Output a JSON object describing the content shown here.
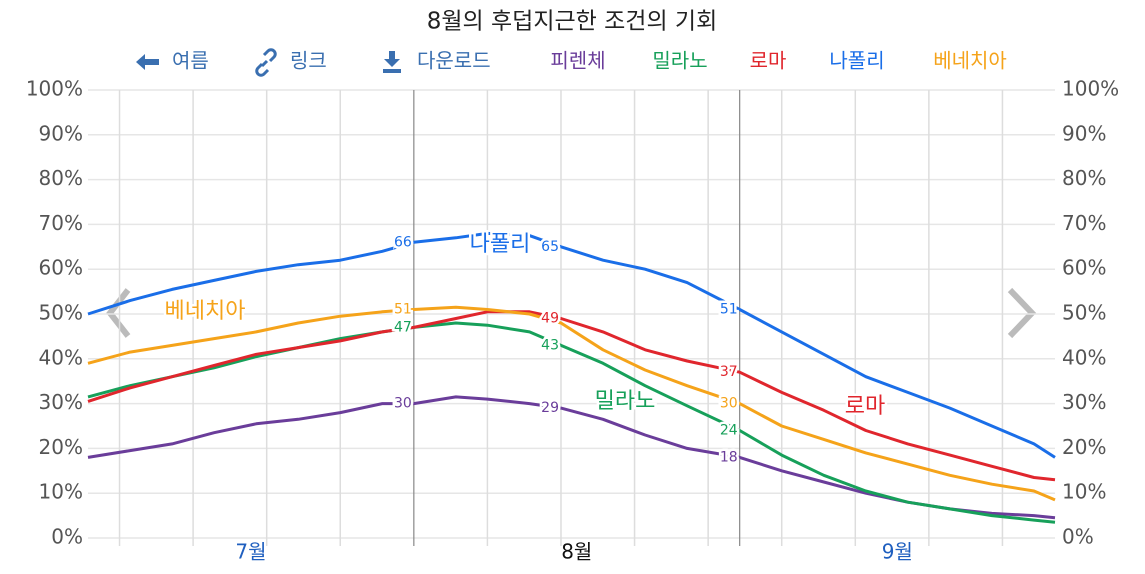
{
  "nav": {
    "back": "여름",
    "link": "링크",
    "download": "다운로드"
  },
  "chart_data": {
    "type": "line",
    "title": "8월의 후덥지근한 조건의 기회",
    "x": [
      0,
      4,
      8,
      12,
      16,
      20,
      24,
      28,
      31,
      35,
      38,
      42,
      45,
      49,
      53,
      57,
      62,
      66,
      70,
      74,
      78,
      82,
      86,
      90,
      92
    ],
    "xlim": [
      0,
      92
    ],
    "xticks": [
      {
        "value": 15.5,
        "label": "7월"
      },
      {
        "value": 46.5,
        "label": "8월"
      },
      {
        "value": 77,
        "label": "9월"
      }
    ],
    "selected_xtick": 1,
    "xmajor": [
      31,
      62
    ],
    "xminor": [
      3,
      10,
      17,
      24,
      38,
      45,
      52,
      59,
      66,
      73,
      80,
      87
    ],
    "ylim": [
      0,
      100
    ],
    "yticks": [
      {
        "value": 0,
        "label": "0%"
      },
      {
        "value": 10,
        "label": "10%"
      },
      {
        "value": 20,
        "label": "20%"
      },
      {
        "value": 30,
        "label": "30%"
      },
      {
        "value": 40,
        "label": "40%"
      },
      {
        "value": 50,
        "label": "50%"
      },
      {
        "value": 60,
        "label": "60%"
      },
      {
        "value": 70,
        "label": "70%"
      },
      {
        "value": 80,
        "label": "80%"
      },
      {
        "value": 90,
        "label": "90%"
      },
      {
        "value": 100,
        "label": "100%"
      }
    ],
    "grid": true,
    "series": [
      {
        "name": "피렌체",
        "color": "#6a3d9a",
        "values": [
          18,
          19.5,
          21,
          23.5,
          25.5,
          26.5,
          28,
          30,
          30,
          31.5,
          31,
          30,
          29,
          26.5,
          23,
          20,
          18,
          15,
          12.5,
          10,
          8,
          6.5,
          5.5,
          5,
          4.5
        ],
        "value_labels": [
          null,
          null,
          null,
          null,
          null,
          null,
          null,
          null,
          "30",
          null,
          null,
          null,
          "29",
          null,
          null,
          null,
          "18",
          null,
          null,
          null,
          null,
          null,
          null,
          null,
          null
        ]
      },
      {
        "name": "밀라노",
        "color": "#17a05a",
        "values": [
          31.5,
          34,
          36,
          38,
          40.5,
          42.5,
          44.5,
          46,
          47,
          48,
          47.5,
          46,
          43,
          39,
          34,
          29.5,
          24,
          18.5,
          14,
          10.5,
          8,
          6.5,
          5,
          4,
          3.5
        ],
        "value_labels": [
          null,
          null,
          null,
          null,
          null,
          null,
          null,
          null,
          "47",
          null,
          null,
          null,
          "43",
          null,
          null,
          null,
          "24",
          null,
          null,
          null,
          null,
          null,
          null,
          null,
          null
        ]
      },
      {
        "name": "로마",
        "color": "#e0262d",
        "values": [
          30.5,
          33.5,
          36,
          38.5,
          41,
          42.5,
          44,
          46,
          47,
          49,
          50.5,
          50.5,
          49,
          46,
          42,
          39.5,
          37,
          32.5,
          28.5,
          24,
          21,
          18.5,
          16,
          13.5,
          13
        ],
        "value_labels": [
          null,
          null,
          null,
          null,
          null,
          null,
          null,
          null,
          null,
          null,
          null,
          null,
          "49",
          null,
          null,
          null,
          "37",
          null,
          null,
          null,
          null,
          null,
          null,
          null,
          null
        ]
      },
      {
        "name": "나폴리",
        "color": "#1a6ee8",
        "values": [
          50,
          53,
          55.5,
          57.5,
          59.5,
          61,
          62,
          64,
          66,
          67,
          68,
          67.5,
          65,
          62,
          60,
          57,
          51,
          46,
          41,
          36,
          32.5,
          29,
          25,
          21,
          18
        ],
        "value_labels": [
          null,
          null,
          null,
          null,
          null,
          null,
          null,
          null,
          "66",
          null,
          null,
          null,
          "65",
          null,
          null,
          null,
          "51",
          null,
          null,
          null,
          null,
          null,
          null,
          null,
          null
        ]
      },
      {
        "name": "베네치아",
        "color": "#f5a31a",
        "values": [
          39,
          41.5,
          43,
          44.5,
          46,
          48,
          49.5,
          50.5,
          51,
          51.5,
          51,
          50,
          48,
          42,
          37.5,
          34,
          30,
          25,
          22,
          19,
          16.5,
          14,
          12,
          10.5,
          8.5
        ],
        "value_labels": [
          null,
          null,
          null,
          null,
          null,
          null,
          null,
          null,
          "51",
          null,
          null,
          null,
          null,
          null,
          null,
          null,
          "30",
          null,
          null,
          null,
          null,
          null,
          null,
          null,
          null
        ]
      }
    ]
  }
}
